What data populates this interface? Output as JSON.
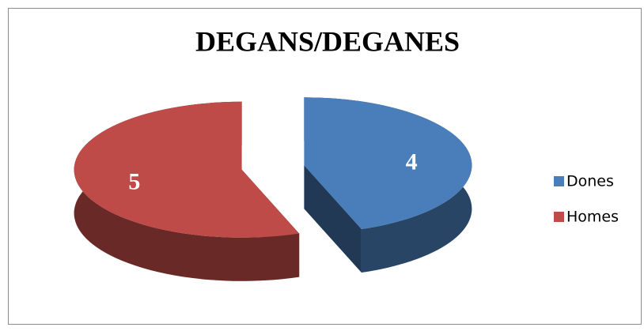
{
  "chart_data": {
    "type": "pie",
    "title": "DEGANS/DEGANES",
    "categories": [
      "Dones",
      "Homes"
    ],
    "values": [
      4,
      5
    ],
    "colors": [
      "#4a7ebb",
      "#be4b48"
    ],
    "legend": "right"
  }
}
